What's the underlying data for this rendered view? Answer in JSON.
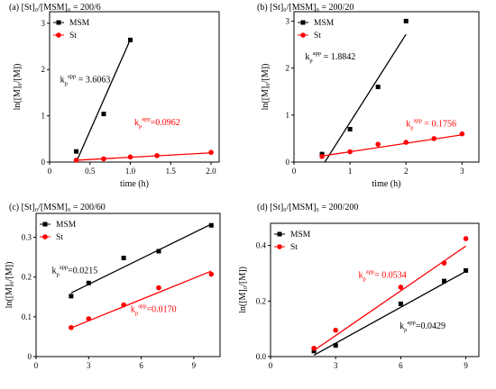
{
  "chart_data": [
    {
      "type": "scatter",
      "title": "(a) [St]₀/[MSM]₀ = 200/6",
      "xlabel": "time (h)",
      "ylabel": "ln([M]₀/[M])",
      "xlim": [
        0,
        2.1
      ],
      "ylim": [
        0,
        3.25
      ],
      "xticks": [
        {
          "v": 0,
          "label": "0"
        },
        {
          "v": 0.5,
          "label": "0.5"
        },
        {
          "v": 1.0,
          "label": "1.0"
        },
        {
          "v": 1.5,
          "label": "1.5"
        },
        {
          "v": 2.0,
          "label": "2.0"
        }
      ],
      "yticks": [
        {
          "v": 0,
          "label": "0"
        },
        {
          "v": 1,
          "label": "1"
        },
        {
          "v": 2,
          "label": "2"
        },
        {
          "v": 3,
          "label": "3"
        }
      ],
      "legend_position": "top-left",
      "series": [
        {
          "name": "MSM",
          "color": "#000000",
          "marker": "square",
          "points": [
            {
              "x": 0.33,
              "y": 0.23
            },
            {
              "x": 0.67,
              "y": 1.04
            },
            {
              "x": 1.0,
              "y": 2.64
            }
          ],
          "fit": {
            "x": [
              0.33,
              1.0
            ],
            "y": [
              0.0,
              2.65
            ]
          },
          "annotation": {
            "base": "k",
            "sub": "p",
            "sup": "app",
            "value": " = 3.6063",
            "x": 0.13,
            "y": 1.72
          }
        },
        {
          "name": "St",
          "color": "#ff0000",
          "marker": "circle",
          "points": [
            {
              "x": 0.33,
              "y": 0.04
            },
            {
              "x": 0.67,
              "y": 0.07
            },
            {
              "x": 1.0,
              "y": 0.11
            },
            {
              "x": 1.33,
              "y": 0.14
            },
            {
              "x": 2.0,
              "y": 0.21
            }
          ],
          "fit": {
            "x": [
              0.33,
              2.0
            ],
            "y": [
              0.04,
              0.2
            ]
          },
          "annotation": {
            "base": "k",
            "sub": "p",
            "sup": "app",
            "value": "=0.0962",
            "x": 1.05,
            "y": 0.8
          }
        }
      ]
    },
    {
      "type": "scatter",
      "title": "(b) [St]₀/[MSM]₀ = 200/20",
      "xlabel": "time (h)",
      "ylabel": "ln([M]₀/[M])",
      "xlim": [
        0,
        3.3
      ],
      "ylim": [
        0,
        3.2
      ],
      "xticks": [
        {
          "v": 0,
          "label": "0"
        },
        {
          "v": 1,
          "label": "1"
        },
        {
          "v": 2,
          "label": "2"
        },
        {
          "v": 3,
          "label": "3"
        }
      ],
      "yticks": [
        {
          "v": 0,
          "label": "0"
        },
        {
          "v": 1,
          "label": "1"
        },
        {
          "v": 2,
          "label": "2"
        },
        {
          "v": 3,
          "label": "3"
        }
      ],
      "legend_position": "top-left",
      "series": [
        {
          "name": "MSM",
          "color": "#000000",
          "marker": "square",
          "points": [
            {
              "x": 0.5,
              "y": 0.17
            },
            {
              "x": 1.0,
              "y": 0.7
            },
            {
              "x": 1.5,
              "y": 1.6
            },
            {
              "x": 2.0,
              "y": 3.0
            }
          ],
          "fit": {
            "x": [
              0.55,
              2.0
            ],
            "y": [
              0.0,
              2.72
            ]
          },
          "annotation": {
            "base": "k",
            "sub": "p",
            "sup": "app",
            "value": " = 1.8842",
            "x": 0.2,
            "y": 2.18
          }
        },
        {
          "name": "St",
          "color": "#ff0000",
          "marker": "circle",
          "points": [
            {
              "x": 0.5,
              "y": 0.12
            },
            {
              "x": 1.0,
              "y": 0.22
            },
            {
              "x": 1.5,
              "y": 0.38
            },
            {
              "x": 2.0,
              "y": 0.42
            },
            {
              "x": 2.5,
              "y": 0.5
            },
            {
              "x": 3.0,
              "y": 0.6
            }
          ],
          "fit": {
            "x": [
              0.5,
              3.0
            ],
            "y": [
              0.13,
              0.58
            ]
          },
          "annotation": {
            "base": "k",
            "sub": "p",
            "sup": "app",
            "value": " = 0.1756",
            "x": 2.0,
            "y": 0.76
          }
        }
      ]
    },
    {
      "type": "scatter",
      "title": "(c) [St]₀/[MSM]₀ = 200/60",
      "xlabel": "",
      "ylabel": "ln([M]₀/[M])",
      "xlim": [
        0,
        10.5
      ],
      "ylim": [
        0,
        0.36
      ],
      "xticks": [
        {
          "v": 0,
          "label": "0"
        },
        {
          "v": 3,
          "label": "3"
        },
        {
          "v": 6,
          "label": "6"
        },
        {
          "v": 9,
          "label": "9"
        }
      ],
      "yticks": [
        {
          "v": 0,
          "label": "0"
        },
        {
          "v": 0.1,
          "label": "0.1"
        },
        {
          "v": 0.2,
          "label": "0.2"
        },
        {
          "v": 0.3,
          "label": "0.3"
        }
      ],
      "legend_position": "top-left",
      "series": [
        {
          "name": "MSM",
          "color": "#000000",
          "marker": "square",
          "points": [
            {
              "x": 2,
              "y": 0.152
            },
            {
              "x": 3,
              "y": 0.185
            },
            {
              "x": 5,
              "y": 0.248
            },
            {
              "x": 7,
              "y": 0.265
            },
            {
              "x": 10,
              "y": 0.33
            }
          ],
          "fit": {
            "x": [
              2,
              10
            ],
            "y": [
              0.16,
              0.333
            ]
          },
          "annotation": {
            "base": "k",
            "sub": "p",
            "sup": "app",
            "value": "=0.0215",
            "x": 0.9,
            "y": 0.21
          }
        },
        {
          "name": "St",
          "color": "#ff0000",
          "marker": "circle",
          "points": [
            {
              "x": 2,
              "y": 0.073
            },
            {
              "x": 3,
              "y": 0.095
            },
            {
              "x": 5,
              "y": 0.13
            },
            {
              "x": 7,
              "y": 0.173
            },
            {
              "x": 10,
              "y": 0.207
            }
          ],
          "fit": {
            "x": [
              2,
              10
            ],
            "y": [
              0.072,
              0.215
            ]
          },
          "annotation": {
            "base": "k",
            "sub": "p",
            "sup": "app",
            "value": "=0.0170",
            "x": 5.4,
            "y": 0.112
          }
        }
      ]
    },
    {
      "type": "scatter",
      "title": "(d) [St]₀/[MSM]₀ = 200/200",
      "xlabel": "",
      "ylabel": "ln([M]₀/[M])",
      "xlim": [
        0,
        9.6
      ],
      "ylim": [
        0,
        0.48
      ],
      "xticks": [
        {
          "v": 0,
          "label": "0"
        },
        {
          "v": 3,
          "label": "3"
        },
        {
          "v": 6,
          "label": "6"
        },
        {
          "v": 9,
          "label": "9"
        }
      ],
      "yticks": [
        {
          "v": 0,
          "label": "0.0"
        },
        {
          "v": 0.2,
          "label": "0.2"
        },
        {
          "v": 0.4,
          "label": "0.4"
        }
      ],
      "legend_position": "top-left",
      "series": [
        {
          "name": "MSM",
          "color": "#000000",
          "marker": "square",
          "points": [
            {
              "x": 2,
              "y": 0.02
            },
            {
              "x": 3,
              "y": 0.04
            },
            {
              "x": 6,
              "y": 0.19
            },
            {
              "x": 8,
              "y": 0.272
            },
            {
              "x": 9,
              "y": 0.31
            }
          ],
          "fit": {
            "x": [
              2,
              9
            ],
            "y": [
              0.005,
              0.307
            ]
          },
          "annotation": {
            "base": "k",
            "sub": "p",
            "sup": "app",
            "value": "=0.0429",
            "x": 5.95,
            "y": 0.1
          }
        },
        {
          "name": "St",
          "color": "#ff0000",
          "marker": "circle",
          "points": [
            {
              "x": 2,
              "y": 0.03
            },
            {
              "x": 3,
              "y": 0.095
            },
            {
              "x": 6,
              "y": 0.25
            },
            {
              "x": 8,
              "y": 0.337
            },
            {
              "x": 9,
              "y": 0.425
            }
          ],
          "fit": {
            "x": [
              2,
              9
            ],
            "y": [
              0.022,
              0.398
            ]
          },
          "annotation": {
            "base": "k",
            "sub": "p",
            "sup": "app",
            "value": "= 0.0534",
            "x": 4.05,
            "y": 0.283
          }
        }
      ]
    }
  ]
}
